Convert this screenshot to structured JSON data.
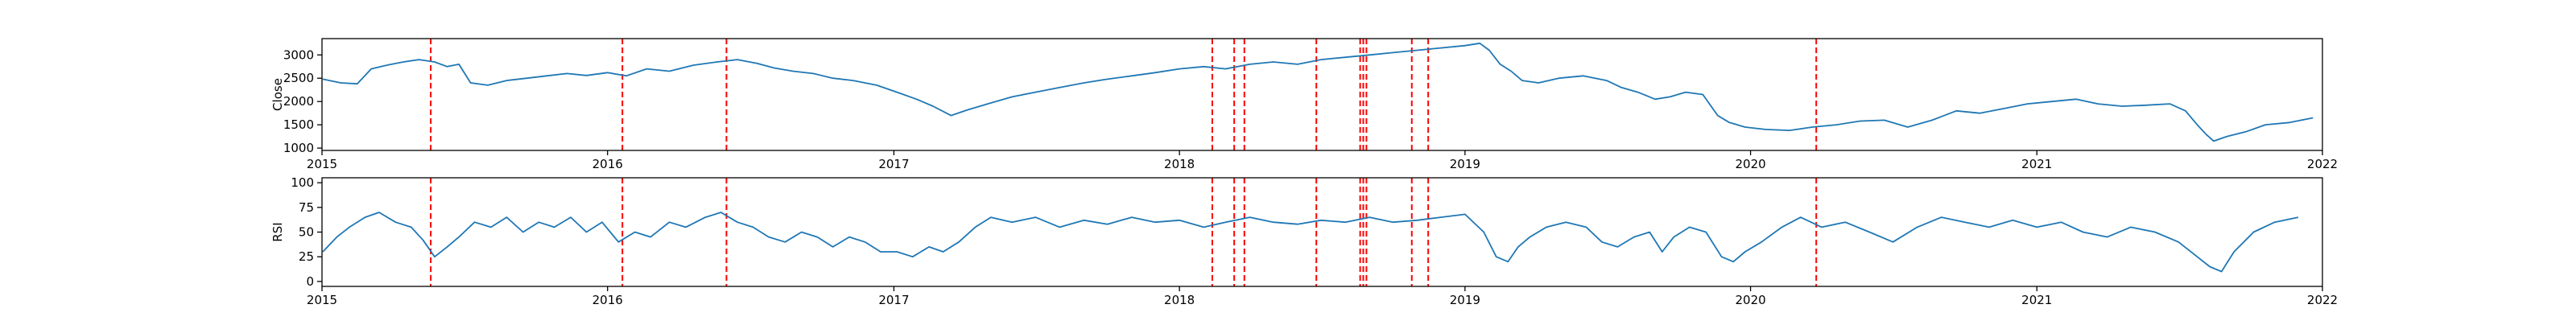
{
  "chart_data": [
    {
      "type": "line",
      "title": "",
      "xlabel": "",
      "ylabel": "Close",
      "xlim": [
        "2015-01-01",
        "2022-01-01"
      ],
      "ylim": [
        950,
        3350
      ],
      "x_ticks": [
        "2015",
        "2016",
        "2017",
        "2018",
        "2019",
        "2020",
        "2021",
        "2022"
      ],
      "y_ticks": [
        1000,
        1500,
        2000,
        2500,
        3000
      ],
      "line_color": "#1f77b4",
      "marker_color": "#ff0000",
      "grid": false,
      "series": [
        {
          "points": [
            [
              "2015-01-02",
              2480
            ],
            [
              "2015-01-25",
              2400
            ],
            [
              "2015-02-15",
              2380
            ],
            [
              "2015-03-05",
              2700
            ],
            [
              "2015-03-25",
              2780
            ],
            [
              "2015-04-15",
              2850
            ],
            [
              "2015-05-05",
              2900
            ],
            [
              "2015-05-25",
              2850
            ],
            [
              "2015-06-10",
              2750
            ],
            [
              "2015-06-25",
              2800
            ],
            [
              "2015-07-10",
              2400
            ],
            [
              "2015-08-01",
              2350
            ],
            [
              "2015-08-25",
              2450
            ],
            [
              "2015-09-20",
              2500
            ],
            [
              "2015-10-15",
              2550
            ],
            [
              "2015-11-10",
              2600
            ],
            [
              "2015-12-05",
              2560
            ],
            [
              "2016-01-01",
              2620
            ],
            [
              "2016-01-25",
              2550
            ],
            [
              "2016-02-20",
              2700
            ],
            [
              "2016-03-20",
              2650
            ],
            [
              "2016-04-20",
              2780
            ],
            [
              "2016-05-20",
              2850
            ],
            [
              "2016-06-15",
              2900
            ],
            [
              "2016-07-10",
              2820
            ],
            [
              "2016-08-01",
              2720
            ],
            [
              "2016-08-25",
              2650
            ],
            [
              "2016-09-20",
              2600
            ],
            [
              "2016-10-15",
              2500
            ],
            [
              "2016-11-10",
              2450
            ],
            [
              "2016-12-10",
              2350
            ],
            [
              "2017-01-05",
              2200
            ],
            [
              "2017-01-30",
              2050
            ],
            [
              "2017-02-20",
              1900
            ],
            [
              "2017-03-15",
              1700
            ],
            [
              "2017-04-05",
              1820
            ],
            [
              "2017-05-01",
              1950
            ],
            [
              "2017-06-01",
              2100
            ],
            [
              "2017-07-01",
              2200
            ],
            [
              "2017-08-01",
              2300
            ],
            [
              "2017-09-01",
              2400
            ],
            [
              "2017-10-01",
              2480
            ],
            [
              "2017-11-01",
              2550
            ],
            [
              "2017-12-01",
              2620
            ],
            [
              "2018-01-01",
              2700
            ],
            [
              "2018-02-01",
              2750
            ],
            [
              "2018-03-01",
              2700
            ],
            [
              "2018-04-01",
              2800
            ],
            [
              "2018-05-01",
              2850
            ],
            [
              "2018-06-01",
              2800
            ],
            [
              "2018-07-01",
              2900
            ],
            [
              "2018-08-01",
              2950
            ],
            [
              "2018-09-01",
              3000
            ],
            [
              "2018-10-01",
              3050
            ],
            [
              "2018-11-01",
              3100
            ],
            [
              "2018-12-01",
              3150
            ],
            [
              "2019-01-01",
              3200
            ],
            [
              "2019-01-20",
              3250
            ],
            [
              "2019-02-01",
              3100
            ],
            [
              "2019-02-15",
              2800
            ],
            [
              "2019-03-01",
              2650
            ],
            [
              "2019-03-15",
              2450
            ],
            [
              "2019-04-05",
              2400
            ],
            [
              "2019-05-01",
              2500
            ],
            [
              "2019-06-01",
              2550
            ],
            [
              "2019-07-01",
              2450
            ],
            [
              "2019-07-20",
              2300
            ],
            [
              "2019-08-10",
              2200
            ],
            [
              "2019-09-01",
              2050
            ],
            [
              "2019-09-20",
              2100
            ],
            [
              "2019-10-10",
              2200
            ],
            [
              "2019-11-01",
              2150
            ],
            [
              "2019-11-20",
              1700
            ],
            [
              "2019-12-05",
              1550
            ],
            [
              "2019-12-25",
              1450
            ],
            [
              "2020-01-20",
              1400
            ],
            [
              "2020-02-20",
              1380
            ],
            [
              "2020-03-20",
              1450
            ],
            [
              "2020-04-20",
              1500
            ],
            [
              "2020-05-20",
              1580
            ],
            [
              "2020-06-20",
              1600
            ],
            [
              "2020-07-20",
              1450
            ],
            [
              "2020-08-20",
              1600
            ],
            [
              "2020-09-20",
              1800
            ],
            [
              "2020-10-20",
              1750
            ],
            [
              "2020-11-20",
              1850
            ],
            [
              "2020-12-20",
              1950
            ],
            [
              "2021-01-20",
              2000
            ],
            [
              "2021-02-20",
              2050
            ],
            [
              "2021-03-20",
              1950
            ],
            [
              "2021-04-20",
              1900
            ],
            [
              "2021-05-20",
              1920
            ],
            [
              "2021-06-20",
              1950
            ],
            [
              "2021-07-10",
              1800
            ],
            [
              "2021-07-25",
              1500
            ],
            [
              "2021-08-05",
              1300
            ],
            [
              "2021-08-15",
              1150
            ],
            [
              "2021-09-01",
              1250
            ],
            [
              "2021-09-25",
              1350
            ],
            [
              "2021-10-20",
              1500
            ],
            [
              "2021-11-20",
              1550
            ],
            [
              "2021-12-20",
              1650
            ]
          ]
        }
      ]
    },
    {
      "type": "line",
      "title": "",
      "xlabel": "",
      "ylabel": "RSI",
      "xlim": [
        "2015-01-01",
        "2022-01-01"
      ],
      "ylim": [
        -5,
        105
      ],
      "x_ticks": [
        "2015",
        "2016",
        "2017",
        "2018",
        "2019",
        "2020",
        "2021",
        "2022"
      ],
      "y_ticks": [
        0,
        25,
        50,
        75,
        100
      ],
      "line_color": "#1f77b4",
      "marker_color": "#ff0000",
      "grid": false,
      "series": [
        {
          "points": [
            [
              "2015-01-02",
              30
            ],
            [
              "2015-01-20",
              45
            ],
            [
              "2015-02-05",
              55
            ],
            [
              "2015-02-25",
              65
            ],
            [
              "2015-03-15",
              70
            ],
            [
              "2015-04-05",
              60
            ],
            [
              "2015-04-25",
              55
            ],
            [
              "2015-05-10",
              42
            ],
            [
              "2015-05-25",
              25
            ],
            [
              "2015-06-10",
              35
            ],
            [
              "2015-06-25",
              45
            ],
            [
              "2015-07-15",
              60
            ],
            [
              "2015-08-05",
              55
            ],
            [
              "2015-08-25",
              65
            ],
            [
              "2015-09-15",
              50
            ],
            [
              "2015-10-05",
              60
            ],
            [
              "2015-10-25",
              55
            ],
            [
              "2015-11-15",
              65
            ],
            [
              "2015-12-05",
              50
            ],
            [
              "2015-12-25",
              60
            ],
            [
              "2016-01-15",
              40
            ],
            [
              "2016-02-05",
              50
            ],
            [
              "2016-02-25",
              45
            ],
            [
              "2016-03-20",
              60
            ],
            [
              "2016-04-10",
              55
            ],
            [
              "2016-05-05",
              65
            ],
            [
              "2016-05-25",
              70
            ],
            [
              "2016-06-15",
              60
            ],
            [
              "2016-07-05",
              55
            ],
            [
              "2016-07-25",
              45
            ],
            [
              "2016-08-15",
              40
            ],
            [
              "2016-09-05",
              50
            ],
            [
              "2016-09-25",
              45
            ],
            [
              "2016-10-15",
              35
            ],
            [
              "2016-11-05",
              45
            ],
            [
              "2016-11-25",
              40
            ],
            [
              "2016-12-15",
              30
            ],
            [
              "2017-01-05",
              30
            ],
            [
              "2017-01-25",
              25
            ],
            [
              "2017-02-15",
              35
            ],
            [
              "2017-03-05",
              30
            ],
            [
              "2017-03-25",
              40
            ],
            [
              "2017-04-15",
              55
            ],
            [
              "2017-05-05",
              65
            ],
            [
              "2017-06-01",
              60
            ],
            [
              "2017-07-01",
              65
            ],
            [
              "2017-08-01",
              55
            ],
            [
              "2017-09-01",
              62
            ],
            [
              "2017-10-01",
              58
            ],
            [
              "2017-11-01",
              65
            ],
            [
              "2017-12-01",
              60
            ],
            [
              "2018-01-01",
              62
            ],
            [
              "2018-02-01",
              55
            ],
            [
              "2018-03-01",
              60
            ],
            [
              "2018-04-01",
              65
            ],
            [
              "2018-05-01",
              60
            ],
            [
              "2018-06-01",
              58
            ],
            [
              "2018-07-01",
              62
            ],
            [
              "2018-08-01",
              60
            ],
            [
              "2018-09-01",
              65
            ],
            [
              "2018-10-01",
              60
            ],
            [
              "2018-11-01",
              62
            ],
            [
              "2018-12-01",
              65
            ],
            [
              "2019-01-01",
              68
            ],
            [
              "2019-01-25",
              50
            ],
            [
              "2019-02-10",
              25
            ],
            [
              "2019-02-25",
              20
            ],
            [
              "2019-03-10",
              35
            ],
            [
              "2019-03-25",
              45
            ],
            [
              "2019-04-15",
              55
            ],
            [
              "2019-05-10",
              60
            ],
            [
              "2019-06-05",
              55
            ],
            [
              "2019-06-25",
              40
            ],
            [
              "2019-07-15",
              35
            ],
            [
              "2019-08-05",
              45
            ],
            [
              "2019-08-25",
              50
            ],
            [
              "2019-09-10",
              30
            ],
            [
              "2019-09-25",
              45
            ],
            [
              "2019-10-15",
              55
            ],
            [
              "2019-11-05",
              50
            ],
            [
              "2019-11-25",
              25
            ],
            [
              "2019-12-10",
              20
            ],
            [
              "2019-12-25",
              30
            ],
            [
              "2020-01-15",
              40
            ],
            [
              "2020-02-10",
              55
            ],
            [
              "2020-03-05",
              65
            ],
            [
              "2020-04-01",
              55
            ],
            [
              "2020-05-01",
              60
            ],
            [
              "2020-06-01",
              50
            ],
            [
              "2020-07-01",
              40
            ],
            [
              "2020-08-01",
              55
            ],
            [
              "2020-09-01",
              65
            ],
            [
              "2020-10-01",
              60
            ],
            [
              "2020-11-01",
              55
            ],
            [
              "2020-12-01",
              62
            ],
            [
              "2021-01-01",
              55
            ],
            [
              "2021-02-01",
              60
            ],
            [
              "2021-03-01",
              50
            ],
            [
              "2021-04-01",
              45
            ],
            [
              "2021-05-01",
              55
            ],
            [
              "2021-06-01",
              50
            ],
            [
              "2021-07-01",
              40
            ],
            [
              "2021-07-25",
              25
            ],
            [
              "2021-08-10",
              15
            ],
            [
              "2021-08-25",
              10
            ],
            [
              "2021-09-10",
              30
            ],
            [
              "2021-10-05",
              50
            ],
            [
              "2021-11-01",
              60
            ],
            [
              "2021-12-01",
              65
            ]
          ]
        }
      ]
    }
  ],
  "event_dates": [
    "2015-05-20",
    "2016-01-20",
    "2016-06-01",
    "2018-02-12",
    "2018-03-12",
    "2018-03-25",
    "2018-06-25",
    "2018-08-20",
    "2018-08-24",
    "2018-08-28",
    "2018-10-25",
    "2018-11-15",
    "2020-03-25"
  ]
}
